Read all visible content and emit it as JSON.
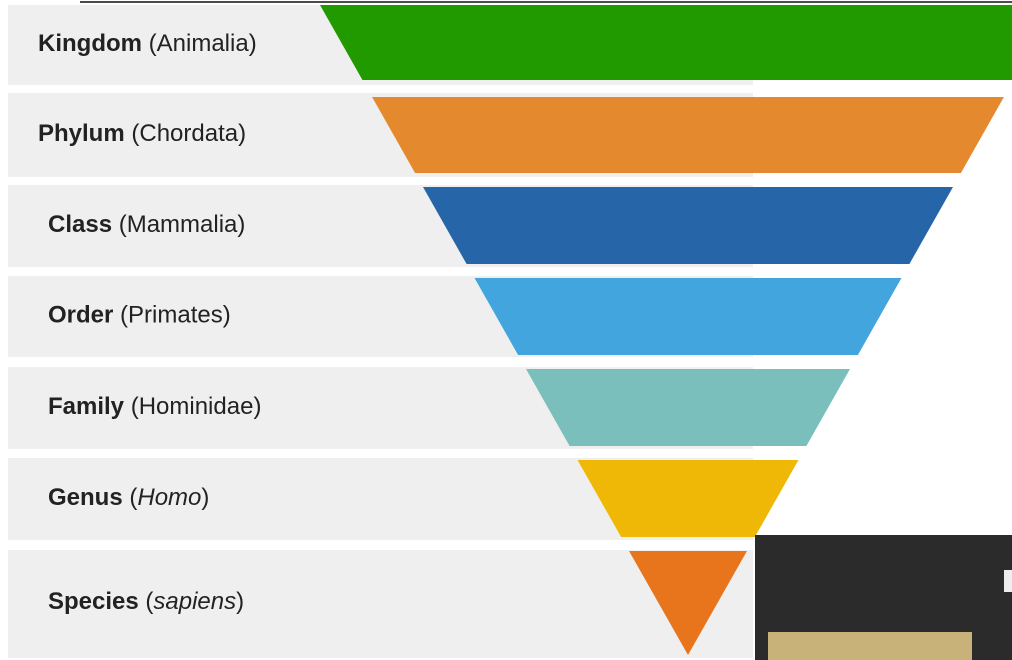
{
  "levels": [
    {
      "rank": "Kingdom",
      "taxon": "Animalia",
      "italic": false,
      "color": "#219a00"
    },
    {
      "rank": "Phylum",
      "taxon": "Chordata",
      "italic": false,
      "color": "#e5892f"
    },
    {
      "rank": "Class",
      "taxon": "Mammalia",
      "italic": false,
      "color": "#2565a8"
    },
    {
      "rank": "Order",
      "taxon": "Primates",
      "italic": false,
      "color": "#42a5dd"
    },
    {
      "rank": "Family",
      "taxon": "Hominidae",
      "italic": false,
      "color": "#7abfbb"
    },
    {
      "rank": "Genus",
      "taxon": "Homo",
      "italic": true,
      "color": "#f0b806"
    },
    {
      "rank": "Species",
      "taxon": "sapiens",
      "italic": true,
      "color": "#e8741c"
    }
  ],
  "brackets": [
    "(",
    ")"
  ]
}
